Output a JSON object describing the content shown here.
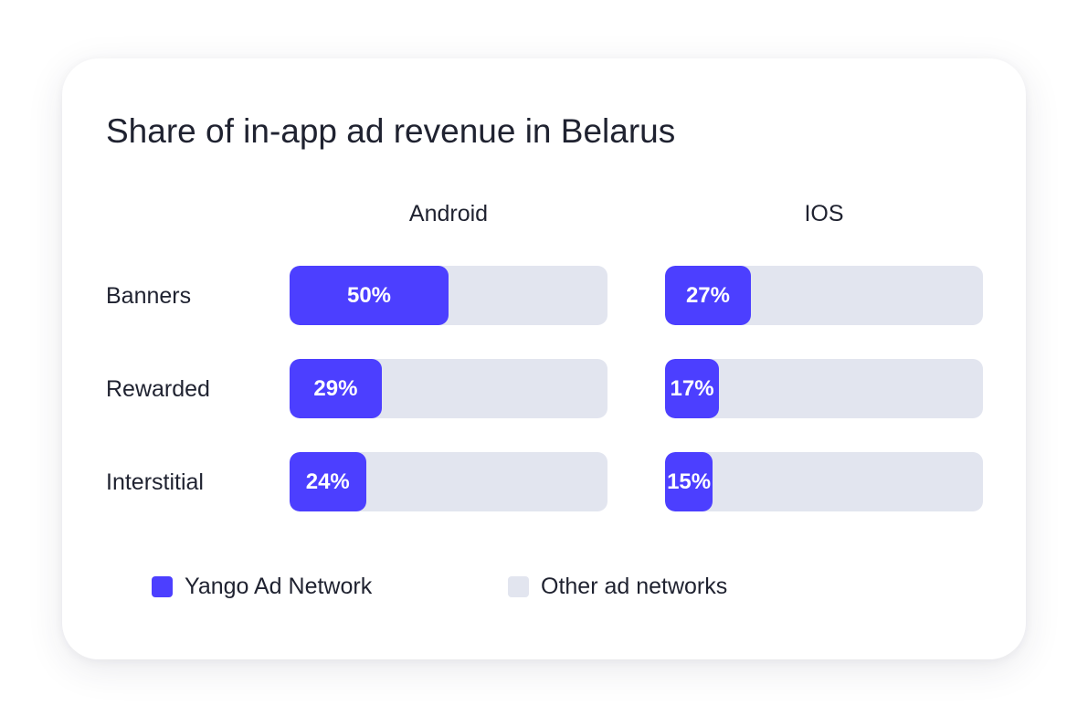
{
  "chart_data": {
    "type": "bar",
    "title": "Share of in-app ad revenue in Belarus",
    "stacked": true,
    "orientation": "horizontal",
    "unit": "%",
    "xlim": [
      0,
      100
    ],
    "categories": [
      "Banners",
      "Rewarded",
      "Interstitial"
    ],
    "panels": [
      "Android",
      "IOS"
    ],
    "series": [
      {
        "name": "Yango Ad Network",
        "color": "#4c3fff",
        "values": {
          "Android": [
            50,
            29,
            24
          ],
          "IOS": [
            27,
            17,
            15
          ]
        },
        "labels": {
          "Android": [
            "50%",
            "29%",
            "24%"
          ],
          "IOS": [
            "27%",
            "17%",
            "15%"
          ]
        }
      },
      {
        "name": "Other ad networks",
        "color": "#e2e5ef",
        "values": {
          "Android": [
            50,
            71,
            76
          ],
          "IOS": [
            73,
            83,
            85
          ]
        }
      }
    ],
    "legend": [
      "Yango Ad Network",
      "Other ad networks"
    ],
    "legend_position": "bottom"
  }
}
